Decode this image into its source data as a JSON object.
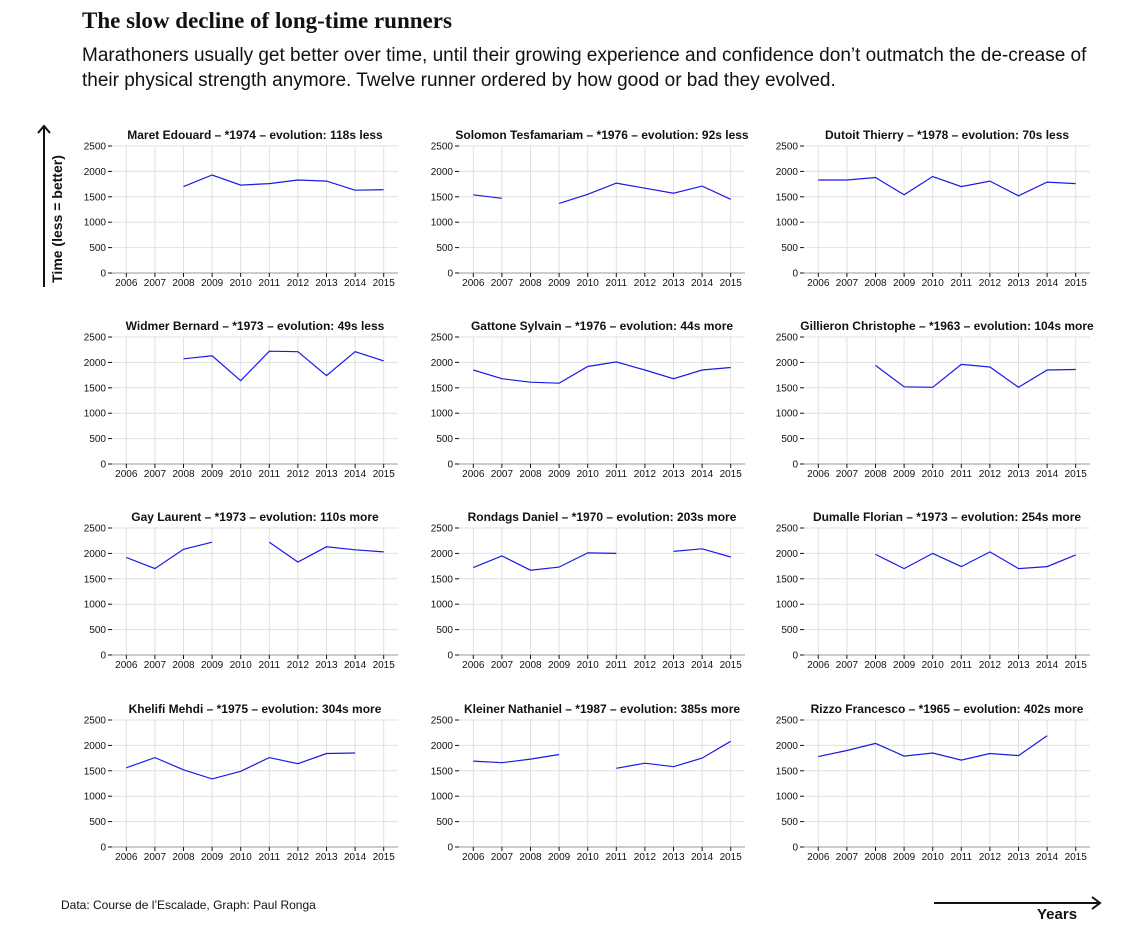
{
  "title": "The slow decline of long-time runners",
  "subtitle": "Marathoners usually get better over time, until their growing experience and confidence don’t outmatch the de-crease of their physical strength anymore. Twelve runner ordered by how good or bad they evolved.",
  "source": "Data: Course de l’Escalade, Graph: Paul Ronga",
  "ylabel": "Time (less = better)",
  "xlabel": "Years",
  "colors": {
    "line": "#1a1ae6",
    "grid": "#e0e0e0",
    "axis": "#111111"
  },
  "chart_data": [
    {
      "type": "line",
      "title": "Maret Edouard – *1974 – evolution: 118s less",
      "x": [
        2006,
        2007,
        2008,
        2009,
        2010,
        2011,
        2012,
        2013,
        2014,
        2015
      ],
      "values": [
        null,
        null,
        1700,
        1930,
        1730,
        1760,
        1830,
        1810,
        1630,
        1640
      ],
      "ylim": [
        0,
        2500
      ],
      "yticks": [
        0,
        500,
        1000,
        1500,
        2000,
        2500
      ]
    },
    {
      "type": "line",
      "title": "Solomon Tesfamariam – *1976 – evolution: 92s less",
      "x": [
        2006,
        2007,
        2008,
        2009,
        2010,
        2011,
        2012,
        2013,
        2014,
        2015
      ],
      "values": [
        1540,
        1470,
        null,
        1370,
        1550,
        1770,
        1670,
        1570,
        1710,
        1450
      ],
      "ylim": [
        0,
        2500
      ],
      "yticks": [
        0,
        500,
        1000,
        1500,
        2000,
        2500
      ]
    },
    {
      "type": "line",
      "title": "Dutoit Thierry – *1978 – evolution: 70s less",
      "x": [
        2006,
        2007,
        2008,
        2009,
        2010,
        2011,
        2012,
        2013,
        2014,
        2015
      ],
      "values": [
        1830,
        1830,
        1880,
        1540,
        1900,
        1700,
        1810,
        1520,
        1790,
        1760
      ],
      "ylim": [
        0,
        2500
      ],
      "yticks": [
        0,
        500,
        1000,
        1500,
        2000,
        2500
      ]
    },
    {
      "type": "line",
      "title": "Widmer Bernard – *1973 – evolution: 49s less",
      "x": [
        2006,
        2007,
        2008,
        2009,
        2010,
        2011,
        2012,
        2013,
        2014,
        2015
      ],
      "values": [
        null,
        null,
        2070,
        2130,
        1640,
        2220,
        2210,
        1740,
        2210,
        2030
      ],
      "ylim": [
        0,
        2500
      ],
      "yticks": [
        0,
        500,
        1000,
        1500,
        2000,
        2500
      ]
    },
    {
      "type": "line",
      "title": "Gattone Sylvain – *1976 – evolution: 44s more",
      "x": [
        2006,
        2007,
        2008,
        2009,
        2010,
        2011,
        2012,
        2013,
        2014,
        2015
      ],
      "values": [
        1850,
        1680,
        1610,
        1590,
        1920,
        2010,
        1850,
        1680,
        1850,
        1900
      ],
      "ylim": [
        0,
        2500
      ],
      "yticks": [
        0,
        500,
        1000,
        1500,
        2000,
        2500
      ]
    },
    {
      "type": "line",
      "title": "Gillieron Christophe – *1963 – evolution: 104s more",
      "x": [
        2006,
        2007,
        2008,
        2009,
        2010,
        2011,
        2012,
        2013,
        2014,
        2015
      ],
      "values": [
        null,
        null,
        1940,
        1520,
        1510,
        1960,
        1910,
        1510,
        1850,
        1860
      ],
      "ylim": [
        0,
        2500
      ],
      "yticks": [
        0,
        500,
        1000,
        1500,
        2000,
        2500
      ]
    },
    {
      "type": "line",
      "title": "Gay Laurent – *1973 – evolution: 110s more",
      "x": [
        2006,
        2007,
        2008,
        2009,
        2010,
        2011,
        2012,
        2013,
        2014,
        2015
      ],
      "values": [
        1920,
        1700,
        2080,
        2220,
        null,
        2220,
        1830,
        2130,
        2070,
        2030
      ],
      "ylim": [
        0,
        2500
      ],
      "yticks": [
        0,
        500,
        1000,
        1500,
        2000,
        2500
      ]
    },
    {
      "type": "line",
      "title": "Rondags Daniel – *1970 – evolution: 203s more",
      "x": [
        2006,
        2007,
        2008,
        2009,
        2010,
        2011,
        2012,
        2013,
        2014,
        2015
      ],
      "values": [
        1720,
        1950,
        1670,
        1730,
        2010,
        2000,
        null,
        2040,
        2090,
        1930
      ],
      "ylim": [
        0,
        2500
      ],
      "yticks": [
        0,
        500,
        1000,
        1500,
        2000,
        2500
      ]
    },
    {
      "type": "line",
      "title": "Dumalle Florian – *1973 – evolution: 254s more",
      "x": [
        2006,
        2007,
        2008,
        2009,
        2010,
        2011,
        2012,
        2013,
        2014,
        2015
      ],
      "values": [
        null,
        null,
        1980,
        1700,
        2000,
        1740,
        2030,
        1700,
        1740,
        1970
      ],
      "ylim": [
        0,
        2500
      ],
      "yticks": [
        0,
        500,
        1000,
        1500,
        2000,
        2500
      ]
    },
    {
      "type": "line",
      "title": "Khelifi Mehdi – *1975 – evolution: 304s more",
      "x": [
        2006,
        2007,
        2008,
        2009,
        2010,
        2011,
        2012,
        2013,
        2014,
        2015
      ],
      "values": [
        1560,
        1760,
        1520,
        1340,
        1490,
        1760,
        1640,
        1840,
        1850,
        null
      ],
      "ylim": [
        0,
        2500
      ],
      "yticks": [
        0,
        500,
        1000,
        1500,
        2000,
        2500
      ]
    },
    {
      "type": "line",
      "title": "Kleiner Nathaniel – *1987 – evolution: 385s more",
      "x": [
        2006,
        2007,
        2008,
        2009,
        2010,
        2011,
        2012,
        2013,
        2014,
        2015
      ],
      "values": [
        1690,
        1660,
        1730,
        1820,
        null,
        1550,
        1650,
        1580,
        1750,
        2080
      ],
      "ylim": [
        0,
        2500
      ],
      "yticks": [
        0,
        500,
        1000,
        1500,
        2000,
        2500
      ]
    },
    {
      "type": "line",
      "title": "Rizzo Francesco – *1965 – evolution: 402s more",
      "x": [
        2006,
        2007,
        2008,
        2009,
        2010,
        2011,
        2012,
        2013,
        2014,
        2015
      ],
      "values": [
        1780,
        1900,
        2040,
        1790,
        1850,
        1710,
        1840,
        1800,
        2190,
        null
      ],
      "ylim": [
        0,
        2500
      ],
      "yticks": [
        0,
        500,
        1000,
        1500,
        2000,
        2500
      ]
    }
  ]
}
